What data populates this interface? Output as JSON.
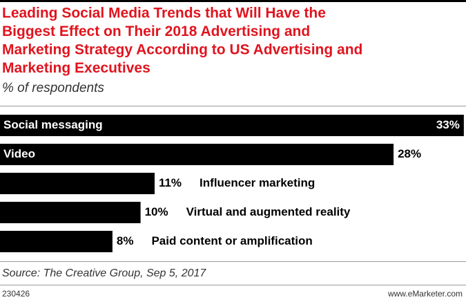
{
  "chart_data": {
    "type": "bar",
    "orientation": "horizontal",
    "title_lines": [
      "Leading Social Media Trends that Will Have the",
      "Biggest Effect on Their 2018 Advertising and",
      "Marketing Strategy According to US Advertising and",
      "Marketing Executives"
    ],
    "subtitle": "% of respondents",
    "categories": [
      "Social messaging",
      "Video",
      "Influencer marketing",
      "Virtual and augmented reality",
      "Paid content or amplification"
    ],
    "values": [
      33,
      28,
      11,
      10,
      8
    ],
    "value_labels": [
      "33%",
      "28%",
      "11%",
      "10%",
      "8%"
    ],
    "color": "#000000",
    "source": "Source: The Creative Group, Sep 5, 2017",
    "chart_id": "230426",
    "brand": "www.eMarketer.com"
  }
}
